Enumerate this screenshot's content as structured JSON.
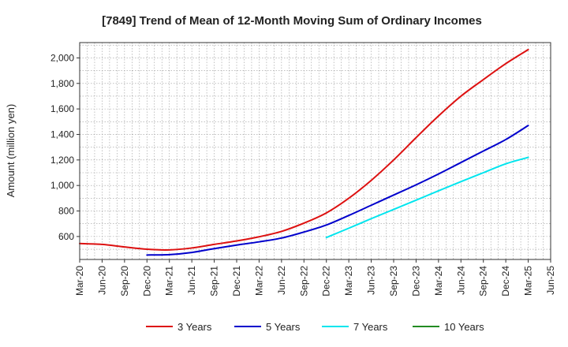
{
  "chart_data": {
    "type": "line",
    "title": "[7849]  Trend of Mean of 12-Month Moving Sum of Ordinary Incomes",
    "xlabel": "",
    "ylabel": "Amount (million yen)",
    "ylim": [
      420,
      2120
    ],
    "yticks": [
      600,
      800,
      1000,
      1200,
      1400,
      1600,
      1800,
      2000
    ],
    "ytick_labels": [
      "600",
      "800",
      "1,000",
      "1,200",
      "1,400",
      "1,600",
      "1,800",
      "2,000"
    ],
    "categories": [
      "Mar-20",
      "Jun-20",
      "Sep-20",
      "Dec-20",
      "Mar-21",
      "Jun-21",
      "Sep-21",
      "Dec-21",
      "Mar-22",
      "Jun-22",
      "Sep-22",
      "Dec-22",
      "Mar-23",
      "Jun-23",
      "Sep-23",
      "Dec-23",
      "Mar-24",
      "Jun-24",
      "Sep-24",
      "Dec-24",
      "Mar-25",
      "Jun-25"
    ],
    "grid": true,
    "legend_position": "bottom",
    "series": [
      {
        "name": "3 Years",
        "color": "#dd1111",
        "values": [
          545,
          538,
          518,
          500,
          495,
          510,
          538,
          565,
          598,
          640,
          705,
          785,
          900,
          1040,
          1200,
          1375,
          1545,
          1700,
          1830,
          1955,
          2065,
          null
        ]
      },
      {
        "name": "5 Years",
        "color": "#0000cc",
        "values": [
          null,
          null,
          null,
          455,
          458,
          475,
          505,
          533,
          558,
          588,
          635,
          690,
          765,
          845,
          925,
          1005,
          1090,
          1180,
          1270,
          1360,
          1470,
          null
        ]
      },
      {
        "name": "7 Years",
        "color": "#00e5ee",
        "values": [
          null,
          null,
          null,
          null,
          null,
          null,
          null,
          null,
          null,
          null,
          null,
          592,
          665,
          740,
          812,
          885,
          958,
          1030,
          1100,
          1170,
          1220,
          null
        ]
      },
      {
        "name": "10 Years",
        "color": "#228b22",
        "values": [
          null,
          null,
          null,
          null,
          null,
          null,
          null,
          null,
          null,
          null,
          null,
          null,
          null,
          null,
          null,
          null,
          null,
          null,
          null,
          null,
          null,
          null
        ]
      }
    ]
  }
}
